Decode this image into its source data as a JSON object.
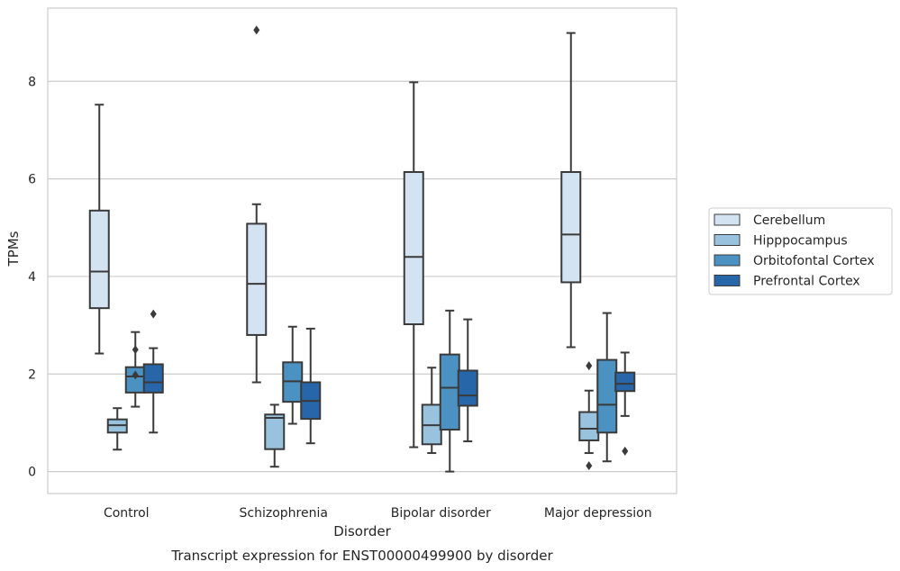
{
  "chart_data": {
    "type": "box",
    "caption": "Transcript expression for ENST00000499900 by disorder",
    "xlabel": "Disorder",
    "ylabel": "TPMs",
    "ylim": [
      -0.45,
      9.5
    ],
    "yticks": [
      0,
      2,
      4,
      6,
      8
    ],
    "grid": "horizontal",
    "legend_position": "right",
    "categories": [
      "Control",
      "Schizophrenia",
      "Bipolar disorder",
      "Major depression"
    ],
    "series": [
      {
        "name": "Cerebellum",
        "color": "#d4e3f2",
        "boxes": [
          {
            "whisker_low": 2.42,
            "q1": 3.35,
            "median": 4.1,
            "q3": 5.35,
            "whisker_high": 7.52,
            "outliers": []
          },
          {
            "whisker_low": 1.83,
            "q1": 2.8,
            "median": 3.85,
            "q3": 5.08,
            "whisker_high": 5.48,
            "outliers": [
              9.05
            ]
          },
          {
            "whisker_low": 0.5,
            "q1": 3.02,
            "median": 4.4,
            "q3": 6.14,
            "whisker_high": 7.98,
            "outliers": []
          },
          {
            "whisker_low": 2.55,
            "q1": 3.88,
            "median": 4.86,
            "q3": 6.14,
            "whisker_high": 8.99,
            "outliers": []
          }
        ]
      },
      {
        "name": "Hipppocampus",
        "color": "#98c2dd",
        "boxes": [
          {
            "whisker_low": 0.45,
            "q1": 0.8,
            "median": 0.95,
            "q3": 1.07,
            "whisker_high": 1.3,
            "outliers": []
          },
          {
            "whisker_low": 0.1,
            "q1": 0.46,
            "median": 1.1,
            "q3": 1.17,
            "whisker_high": 1.37,
            "outliers": []
          },
          {
            "whisker_low": 0.38,
            "q1": 0.56,
            "median": 0.95,
            "q3": 1.37,
            "whisker_high": 2.13,
            "outliers": []
          },
          {
            "whisker_low": 0.38,
            "q1": 0.64,
            "median": 0.88,
            "q3": 1.22,
            "whisker_high": 1.66,
            "outliers": [
              0.12,
              2.17
            ]
          }
        ]
      },
      {
        "name": "Orbitofontal Cortex",
        "color": "#4b91c2",
        "boxes": [
          {
            "whisker_low": 1.33,
            "q1": 1.62,
            "median": 1.95,
            "q3": 2.14,
            "whisker_high": 2.86,
            "outliers": [
              1.98,
              2.5
            ]
          },
          {
            "whisker_low": 0.98,
            "q1": 1.43,
            "median": 1.85,
            "q3": 2.24,
            "whisker_high": 2.97,
            "outliers": []
          },
          {
            "whisker_low": 0.0,
            "q1": 0.86,
            "median": 1.72,
            "q3": 2.4,
            "whisker_high": 3.3,
            "outliers": []
          },
          {
            "whisker_low": 0.21,
            "q1": 0.8,
            "median": 1.37,
            "q3": 2.29,
            "whisker_high": 3.25,
            "outliers": []
          }
        ]
      },
      {
        "name": "Prefrontal Cortex",
        "color": "#2766a8",
        "boxes": [
          {
            "whisker_low": 0.8,
            "q1": 1.62,
            "median": 1.83,
            "q3": 2.2,
            "whisker_high": 2.53,
            "outliers": [
              3.23
            ]
          },
          {
            "whisker_low": 0.58,
            "q1": 1.08,
            "median": 1.45,
            "q3": 1.83,
            "whisker_high": 2.93,
            "outliers": []
          },
          {
            "whisker_low": 0.62,
            "q1": 1.35,
            "median": 1.56,
            "q3": 2.07,
            "whisker_high": 3.12,
            "outliers": []
          },
          {
            "whisker_low": 1.14,
            "q1": 1.65,
            "median": 1.8,
            "q3": 2.03,
            "whisker_high": 2.44,
            "outliers": [
              0.42
            ]
          }
        ]
      }
    ]
  }
}
